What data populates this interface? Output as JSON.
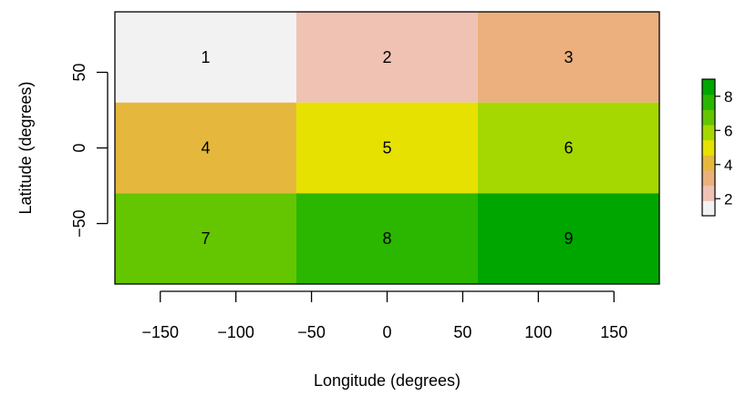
{
  "chart_data": {
    "type": "heatmap",
    "xlabel": "Longitude (degrees)",
    "ylabel": "Latitude (degrees)",
    "xlim": [
      -180,
      180
    ],
    "ylim": [
      -90,
      90
    ],
    "x_ticks": [
      -150,
      -100,
      -50,
      0,
      50,
      100,
      150
    ],
    "x_tick_labels": [
      "−150",
      "−100",
      "−50",
      "0",
      "50",
      "100",
      "150"
    ],
    "y_ticks": [
      50,
      0,
      -50
    ],
    "y_tick_labels": [
      "50",
      "0",
      "−50"
    ],
    "grid": false,
    "cells": [
      {
        "x_range": [
          -180,
          -60
        ],
        "y_range": [
          30,
          90
        ],
        "value": 1,
        "label": "1",
        "color": "#f2f2f2"
      },
      {
        "x_range": [
          -60,
          60
        ],
        "y_range": [
          30,
          90
        ],
        "value": 2,
        "label": "2",
        "color": "#efc2b3"
      },
      {
        "x_range": [
          60,
          180
        ],
        "y_range": [
          30,
          90
        ],
        "value": 3,
        "label": "3",
        "color": "#ebb07d"
      },
      {
        "x_range": [
          -180,
          -60
        ],
        "y_range": [
          -30,
          30
        ],
        "value": 4,
        "label": "4",
        "color": "#e5b83d"
      },
      {
        "x_range": [
          -60,
          60
        ],
        "y_range": [
          -30,
          30
        ],
        "value": 5,
        "label": "5",
        "color": "#e6e100"
      },
      {
        "x_range": [
          60,
          180
        ],
        "y_range": [
          -30,
          30
        ],
        "value": 6,
        "label": "6",
        "color": "#a5d800"
      },
      {
        "x_range": [
          -180,
          -60
        ],
        "y_range": [
          -90,
          -30
        ],
        "value": 7,
        "label": "7",
        "color": "#63c600"
      },
      {
        "x_range": [
          -60,
          60
        ],
        "y_range": [
          -90,
          -30
        ],
        "value": 8,
        "label": "8",
        "color": "#2bb600"
      },
      {
        "x_range": [
          60,
          180
        ],
        "y_range": [
          -90,
          -30
        ],
        "value": 9,
        "label": "9",
        "color": "#00a600"
      }
    ],
    "legend": {
      "placement": "right",
      "range": [
        1,
        9
      ],
      "ticks": [
        2,
        4,
        6,
        8
      ],
      "tick_labels": [
        "2",
        "4",
        "6",
        "8"
      ],
      "colors": [
        "#f2f2f2",
        "#efc2b3",
        "#ebb07d",
        "#e5b83d",
        "#e6e100",
        "#a5d800",
        "#63c600",
        "#2bb600",
        "#00a600"
      ]
    }
  }
}
